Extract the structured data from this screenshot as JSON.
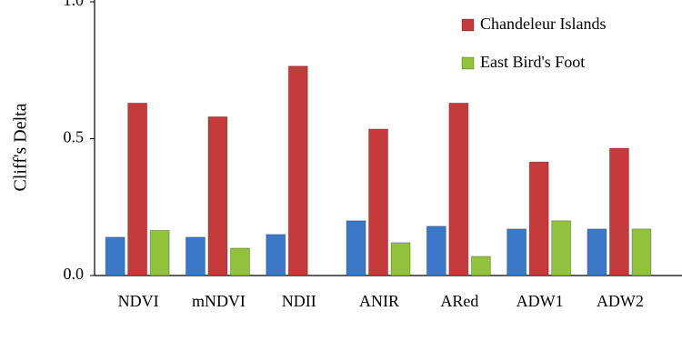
{
  "chart_data": {
    "type": "bar",
    "y_label": "Cliff's Delta",
    "categories": [
      "NDVI",
      "mNDVI",
      "NDII",
      "ANIR",
      "ARed",
      "ADW1",
      "ADW2"
    ],
    "series": [
      {
        "color": "#3b78c8",
        "values": [
          0.14,
          0.14,
          0.15,
          0.2,
          0.18,
          0.17,
          0.17
        ]
      },
      {
        "name": "Chandeleur Islands",
        "color": "#c53a3a",
        "values": [
          0.63,
          0.58,
          0.765,
          0.535,
          0.63,
          0.415,
          0.465
        ]
      },
      {
        "name": "East Bird's Foot",
        "color": "#92c13c",
        "values": [
          0.165,
          0.1,
          null,
          0.12,
          0.07,
          0.2,
          0.17
        ]
      }
    ],
    "ylim": [
      0,
      1
    ],
    "yticks": [
      {
        "value": 0,
        "label": "0.0"
      },
      {
        "value": 0.5,
        "label": "0.5"
      },
      {
        "value": 1,
        "label": "1.0"
      }
    ]
  }
}
